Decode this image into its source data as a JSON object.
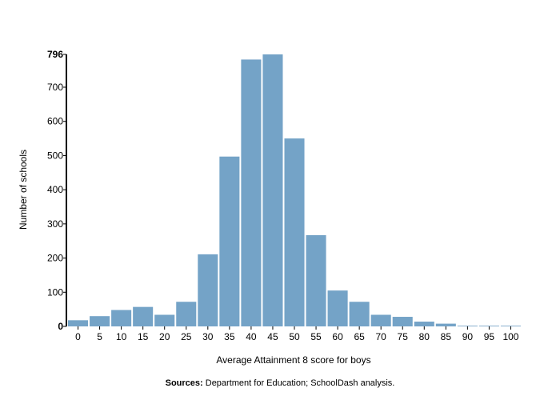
{
  "chart_data": {
    "type": "bar",
    "title": "",
    "xlabel": "Average Attainment 8 score for boys",
    "ylabel": "Number of schools",
    "categories": [
      "0",
      "5",
      "10",
      "15",
      "20",
      "25",
      "30",
      "35",
      "40",
      "45",
      "50",
      "55",
      "60",
      "65",
      "70",
      "75",
      "80",
      "85",
      "90",
      "95",
      "100"
    ],
    "values": [
      18,
      30,
      48,
      57,
      34,
      72,
      211,
      497,
      781,
      796,
      550,
      267,
      105,
      72,
      34,
      28,
      14,
      8,
      2,
      2,
      2
    ],
    "ylim": [
      0,
      796
    ],
    "yticks": [
      0,
      100,
      200,
      300,
      400,
      500,
      600,
      700,
      796
    ],
    "bar_color": "#74a3c7",
    "grid": false
  },
  "source": {
    "label": "Sources:",
    "text": " Department for Education; SchoolDash analysis."
  }
}
